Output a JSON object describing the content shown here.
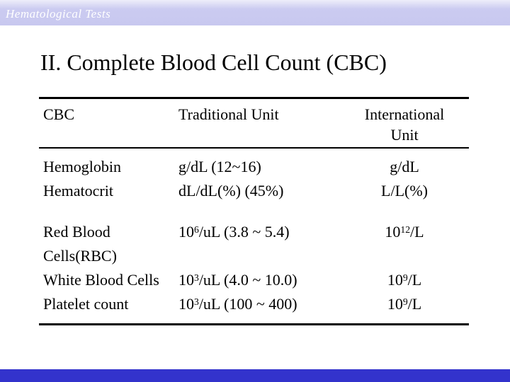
{
  "slide": {
    "header_bar": {
      "text": "Hematological Tests",
      "bg_color": "#cbcbf1",
      "text_color": "#ffffff"
    },
    "title": "II. Complete Blood Cell Count (CBC)",
    "table": {
      "columns": [
        "CBC",
        "Traditional Unit",
        "International Unit"
      ],
      "rows": [
        {
          "test": "Hemoglobin",
          "traditional": {
            "pre": "g/dL (12~16)"
          },
          "international": {
            "pre": "g/dL"
          }
        },
        {
          "test": "Hematocrit",
          "traditional": {
            "pre": "dL/dL(%) (45%)"
          },
          "international": {
            "pre": "L/L(%)"
          }
        },
        {
          "test": "Red Blood Cells(RBC)",
          "traditional": {
            "pre": "10",
            "sup": "6",
            "post": "/uL (3.8 ~ 5.4)"
          },
          "international": {
            "pre": "10",
            "sup": "12",
            "post": "/L"
          }
        },
        {
          "test": "White Blood Cells",
          "traditional": {
            "pre": "10",
            "sup": "3",
            "post": "/uL (4.0 ~ 10.0)"
          },
          "international": {
            "pre": "10",
            "sup": "9",
            "post": "/L"
          }
        },
        {
          "test": "Platelet count",
          "traditional": {
            "pre": "10",
            "sup": "3",
            "post": "/uL (100 ~ 400)"
          },
          "international": {
            "pre": "10",
            "sup": "9",
            "post": "/L"
          }
        }
      ]
    },
    "footer_bar": {
      "bg_color": "#3333cc"
    }
  }
}
